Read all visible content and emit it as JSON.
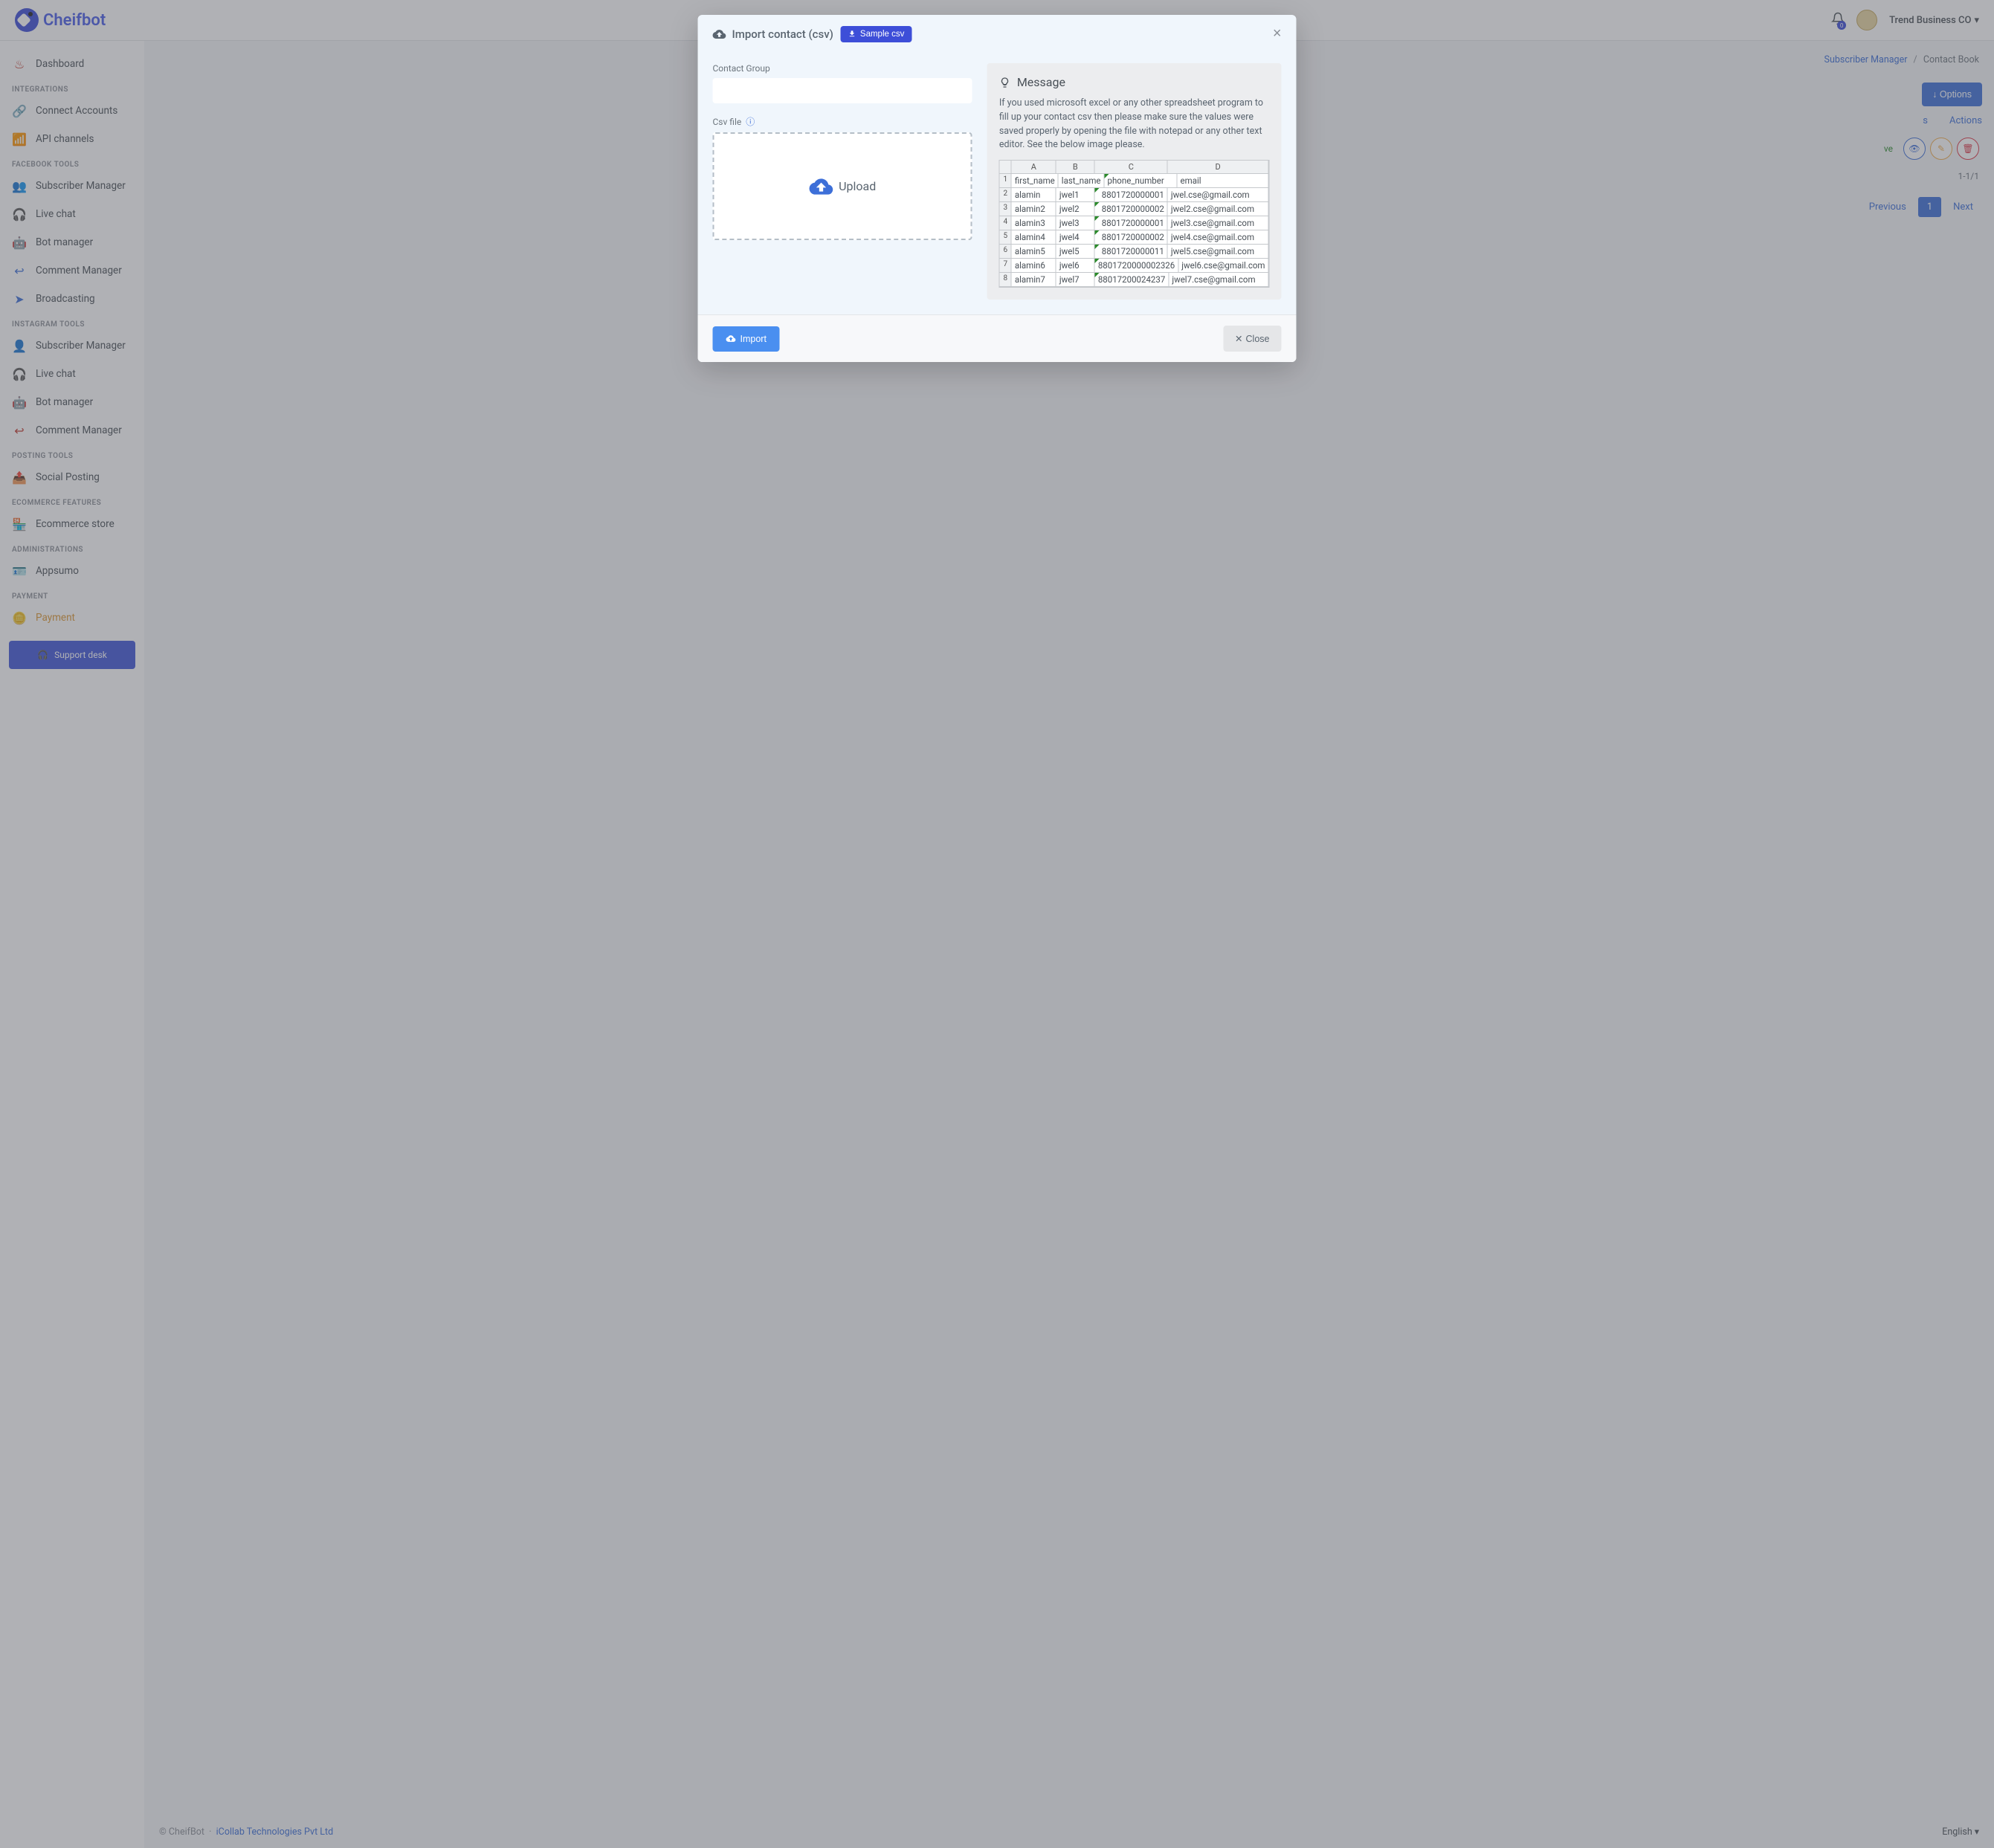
{
  "header": {
    "logo_text": "Cheifbot",
    "notif_count": "0",
    "user_name": "Trend Business CO"
  },
  "sidebar": {
    "dashboard": "Dashboard",
    "section_integrations": "INTEGRATIONS",
    "connect_accounts": "Connect Accounts",
    "api_channels": "API channels",
    "section_fb": "FACEBOOK TOOLS",
    "fb_subscriber": "Subscriber Manager",
    "fb_livechat": "Live chat",
    "fb_bot": "Bot manager",
    "fb_comment": "Comment Manager",
    "fb_broadcast": "Broadcasting",
    "section_ig": "INSTAGRAM TOOLS",
    "ig_subscriber": "Subscriber Manager",
    "ig_livechat": "Live chat",
    "ig_bot": "Bot manager",
    "ig_comment": "Comment Manager",
    "section_posting": "POSTING TOOLS",
    "social_posting": "Social Posting",
    "section_ecom": "ECOMMERCE FEATURES",
    "ecom_store": "Ecommerce store",
    "section_admin": "ADMINISTRATIONS",
    "appsumo": "Appsumo",
    "section_payment": "PAYMENT",
    "payment": "Payment",
    "support_desk": "Support desk"
  },
  "breadcrumb": {
    "link": "Subscriber Manager",
    "current": "Contact Book"
  },
  "bg": {
    "options": "Options",
    "col_s": "s",
    "col_actions": "Actions",
    "row_status": "ve",
    "paging": "1-1/1",
    "prev": "Previous",
    "page": "1",
    "next": "Next"
  },
  "modal": {
    "title": "Import contact (csv)",
    "sample": "Sample csv",
    "contact_group_label": "Contact Group",
    "csv_file_label": "Csv file",
    "upload": "Upload",
    "msg_title": "Message",
    "msg_text": "If you used microsoft excel or any other spreadsheet program to fill up your contact csv then please make sure the values were saved properly by opening the file with notepad or any other text editor. See the below image please.",
    "import_btn": "Import",
    "close_btn": "Close"
  },
  "excel": {
    "cols": {
      "a": "A",
      "b": "B",
      "c": "C",
      "d": "D"
    },
    "h": {
      "a": "first_name",
      "b": "last_name",
      "c": "phone_number",
      "d": "email"
    },
    "rows": [
      {
        "n": "1"
      },
      {
        "n": "2",
        "a": "alamin",
        "b": "jwel1",
        "c": "8801720000001",
        "d": "jwel.cse@gmail.com"
      },
      {
        "n": "3",
        "a": "alamin2",
        "b": "jwel2",
        "c": "8801720000002",
        "d": "jwel2.cse@gmail.com"
      },
      {
        "n": "4",
        "a": "alamin3",
        "b": "jwel3",
        "c": "8801720000001",
        "d": "jwel3.cse@gmail.com"
      },
      {
        "n": "5",
        "a": "alamin4",
        "b": "jwel4",
        "c": "8801720000002",
        "d": "jwel4.cse@gmail.com"
      },
      {
        "n": "6",
        "a": "alamin5",
        "b": "jwel5",
        "c": "8801720000011",
        "d": "jwel5.cse@gmail.com"
      },
      {
        "n": "7",
        "a": "alamin6",
        "b": "jwel6",
        "c": "8801720000002326",
        "d": "jwel6.cse@gmail.com"
      },
      {
        "n": "8",
        "a": "alamin7",
        "b": "jwel7",
        "c": "88017200024237",
        "d": "jwel7.cse@gmail.com"
      }
    ]
  },
  "footer": {
    "copyright": "© CheifBot",
    "dot": "·",
    "company": "iCollab Technologies Pvt Ltd",
    "lang": "English"
  }
}
